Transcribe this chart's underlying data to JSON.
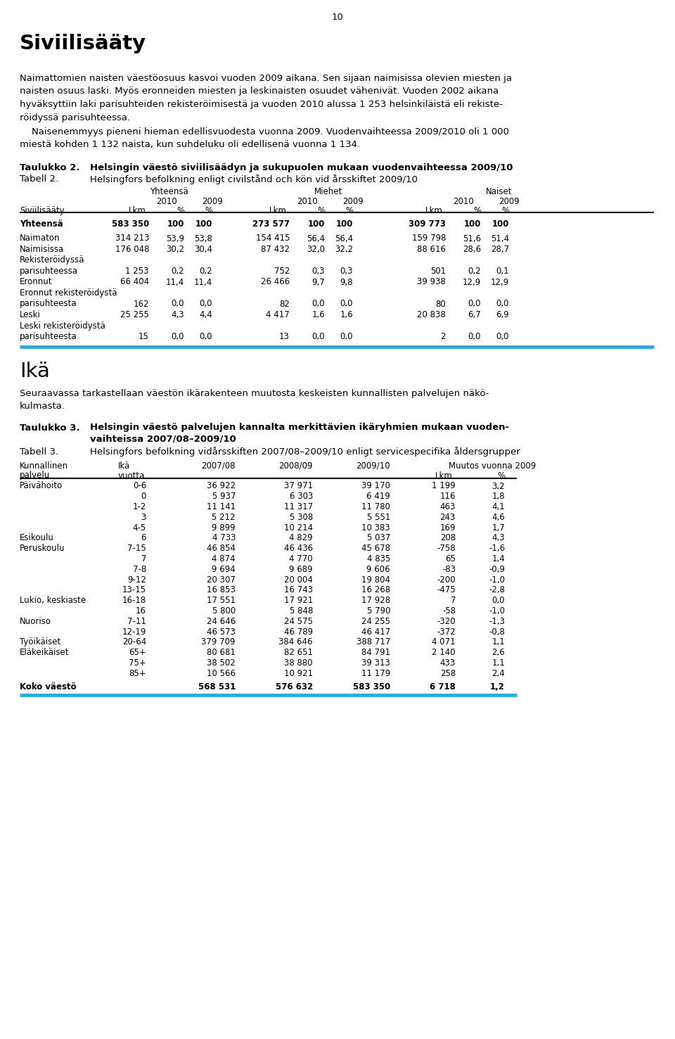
{
  "page_number": "10",
  "section1_title": "Siviilisääty",
  "section1_para1_lines": [
    "Naimattomien naisten väestöosuus kasvoi vuoden 2009 aikana. Sen sijaan naimisissa olevien miesten ja",
    "naisten osuus laski. Myös eronneiden miesten ja leskinaisten osuudet vähenivät. Vuoden 2002 aikana",
    "hyväksyttiin laki parisuhteiden rekisteröimisestä ja vuoden 2010 alussa 1 253 helsinkiläistä eli rekiste-",
    "röidyssä parisuhteessa."
  ],
  "section1_para2_lines": [
    "    Naisenemmyys pieneni hieman edellisvuodesta vuonna 2009. Vuodenvaihteessa 2009/2010 oli 1 000",
    "miestä kohden 1 132 naista, kun suhdeluku oli edellisenä vuonna 1 134."
  ],
  "table2_label": "Taulukko 2.",
  "table2_title": "Helsingin väestö siviilisäädyn ja sukupuolen mukaan vuodenvaihteessa 2009/10",
  "table2_subtitle_label": "Tabell 2.",
  "table2_subtitle": "Helsingfors befolkning enligt civilstånd och kön vid årsskiftet 2009/10",
  "table2_rows": [
    [
      "Yhteensä",
      "583 350",
      "100",
      "100",
      "273 577",
      "100",
      "100",
      "309 773",
      "100",
      "100"
    ],
    [
      "Naimaton",
      "314 213",
      "53,9",
      "53,8",
      "154 415",
      "56,4",
      "56,4",
      "159 798",
      "51,6",
      "51,4"
    ],
    [
      "Naimisissa",
      "176 048",
      "30,2",
      "30,4",
      "87 432",
      "32,0",
      "32,2",
      "88 616",
      "28,6",
      "28,7"
    ],
    [
      "Rekisteröidyssä",
      "",
      "",
      "",
      "",
      "",
      "",
      "",
      "",
      ""
    ],
    [
      "parisuhteessa",
      "1 253",
      "0,2",
      "0,2",
      "752",
      "0,3",
      "0,3",
      "501",
      "0,2",
      "0,1"
    ],
    [
      "Eronnut",
      "66 404",
      "11,4",
      "11,4",
      "26 466",
      "9,7",
      "9,8",
      "39 938",
      "12,9",
      "12,9"
    ],
    [
      "Eronnut rekisteröidystä",
      "",
      "",
      "",
      "",
      "",
      "",
      "",
      "",
      ""
    ],
    [
      "parisuhteesta",
      "162",
      "0,0",
      "0,0",
      "82",
      "0,0",
      "0,0",
      "80",
      "0,0",
      "0,0"
    ],
    [
      "Leski",
      "25 255",
      "4,3",
      "4,4",
      "4 417",
      "1,6",
      "1,6",
      "20 838",
      "6,7",
      "6,9"
    ],
    [
      "Leski rekisteröidystä",
      "",
      "",
      "",
      "",
      "",
      "",
      "",
      "",
      ""
    ],
    [
      "parisuhteesta",
      "15",
      "0,0",
      "0,0",
      "13",
      "0,0",
      "0,0",
      "2",
      "0,0",
      "0,0"
    ]
  ],
  "section2_title": "Ikä",
  "section2_para_lines": [
    "Seuraavassa tarkastellaan väestön ikärakenteen muutosta keskeisten kunnallisten palvelujen näkö-",
    "kulmasta."
  ],
  "table3_label": "Taulukko 3.",
  "table3_title_lines": [
    "Helsingin väestö palvelujen kannalta merkittävien ikäryhmien mukaan vuoden-",
    "vaihteissa 2007/08–2009/10"
  ],
  "table3_subtitle_label": "Tabell 3.",
  "table3_subtitle": "Helsingfors befolkning vidårsskiften 2007/08–2009/10 enligt servicespecifika åldersgrupper",
  "table3_rows": [
    [
      "Päivähoito",
      "0-6",
      "36 922",
      "37 971",
      "39 170",
      "1 199",
      "3,2"
    ],
    [
      "",
      "0",
      "5 937",
      "6 303",
      "6 419",
      "116",
      "1,8"
    ],
    [
      "",
      "1-2",
      "11 141",
      "11 317",
      "11 780",
      "463",
      "4,1"
    ],
    [
      "",
      "3",
      "5 212",
      "5 308",
      "5 551",
      "243",
      "4,6"
    ],
    [
      "",
      "4-5",
      "9 899",
      "10 214",
      "10 383",
      "169",
      "1,7"
    ],
    [
      "Esikoulu",
      "6",
      "4 733",
      "4 829",
      "5 037",
      "208",
      "4,3"
    ],
    [
      "Peruskoulu",
      "7-15",
      "46 854",
      "46 436",
      "45 678",
      "-758",
      "-1,6"
    ],
    [
      "",
      "7",
      "4 874",
      "4 770",
      "4 835",
      "65",
      "1,4"
    ],
    [
      "",
      "7-8",
      "9 694",
      "9 689",
      "9 606",
      "-83",
      "-0,9"
    ],
    [
      "",
      "9-12",
      "20 307",
      "20 004",
      "19 804",
      "-200",
      "-1,0"
    ],
    [
      "",
      "13-15",
      "16 853",
      "16 743",
      "16 268",
      "-475",
      "-2,8"
    ],
    [
      "Lukio, keskiaste",
      "16-18",
      "17 551",
      "17 921",
      "17 928",
      "7",
      "0,0"
    ],
    [
      "",
      "16",
      "5 800",
      "5 848",
      "5 790",
      "-58",
      "-1,0"
    ],
    [
      "Nuoriso",
      "7-11",
      "24 646",
      "24 575",
      "24 255",
      "-320",
      "-1,3"
    ],
    [
      "",
      "12-19",
      "46 573",
      "46 789",
      "46 417",
      "-372",
      "-0,8"
    ],
    [
      "Työikäiset",
      "20-64",
      "379 709",
      "384 646",
      "388 717",
      "4 071",
      "1,1"
    ],
    [
      "Eläkeikäiset",
      "65+",
      "80 681",
      "82 651",
      "84 791",
      "2 140",
      "2,6"
    ],
    [
      "",
      "75+",
      "38 502",
      "38 880",
      "39 313",
      "433",
      "1,1"
    ],
    [
      "",
      "85+",
      "10 566",
      "10 921",
      "11 179",
      "258",
      "2,4"
    ],
    [
      "Koko väestö",
      "",
      "568 531",
      "576 632",
      "583 350",
      "6 718",
      "1,2"
    ]
  ],
  "bg_color": "#ffffff",
  "cyan_bar_color": "#29ABE2"
}
